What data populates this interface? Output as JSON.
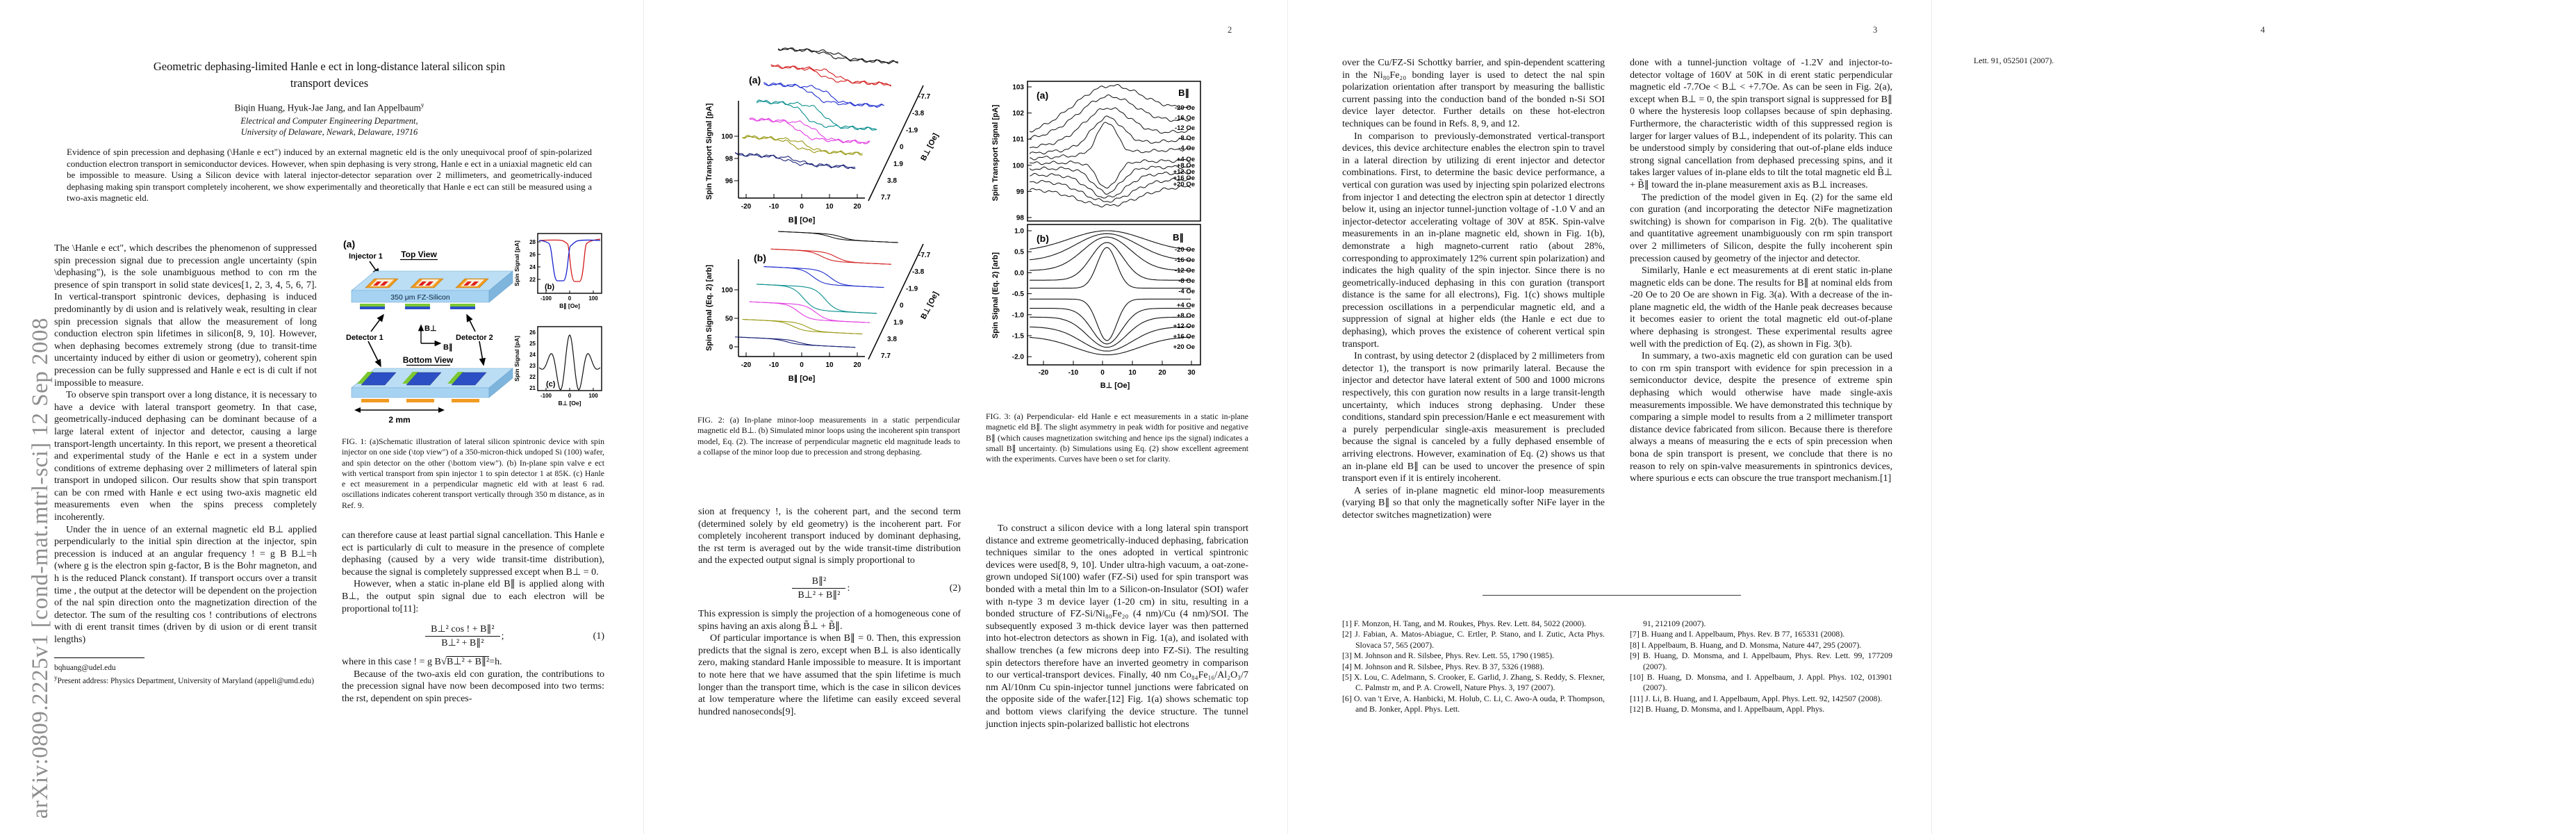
{
  "banner": "arXiv:0809.2225v1  [cond-mat.mtrl-sci]  12 Sep 2008",
  "page_numbers": {
    "p2": "2",
    "p3": "3",
    "p4": "4"
  },
  "head": {
    "title1": "Geometric dephasing-limited Hanle e ect in long-distance lateral silicon spin",
    "title2": "transport devices",
    "authors": "Biqin Huang,  Hyuk-Jae Jang, and Ian Appelbaum",
    "authors_sup": "y",
    "affil1": "Electrical and Computer Engineering Department,",
    "affil2": "University of Delaware, Newark, Delaware, 19716",
    "abstract": "Evidence of spin precession and dephasing (\\Hanle e ect\") induced by an external magnetic eld is the only unequivocal proof of spin-polarized conduction electron transport in semiconductor devices. However, when spin dephasing is very strong, Hanle e ect in a uniaxial magnetic eld can be impossible to measure. Using a Silicon device with lateral injector-detector separation over 2 millimeters, and geometrically-induced dephasing making spin transport completely incoherent, we show experimentally and theoretically that Hanle e ect can still be measured using a two-axis magnetic eld."
  },
  "p1": {
    "c1p1": "The \\Hanle e ect\", which describes the phenomenon of suppressed spin precession signal due to precession angle uncertainty (spin \\dephasing\"), is the sole unambiguous method to con rm the presence of spin transport in solid state devices[1, 2, 3, 4, 5, 6, 7]. In vertical-transport spintronic devices, dephasing is induced predominantly by di usion and is relatively weak, resulting in clear spin precession signals that allow the measurement of long conduction electron spin lifetimes in silicon[8, 9, 10]. However, when dephasing becomes extremely strong (due to transit-time uncertainty induced by either di usion or geometry), coherent spin precession can be fully suppressed and Hanle e ect is di cult if not impossible to measure.",
    "c1p2": "To observe spin transport over a long distance, it is necessary to have a device with lateral transport geometry. In that case, geometrically-induced dephasing can be dominant because of a large lateral extent of injector and detector, causing a large transport-length uncertainty. In this report, we present a theoretical and experimental study of the Hanle e ect in a system under conditions of extreme dephasing over 2 millimeters of lateral spin transport in undoped silicon. Our results show that spin transport can be con rmed with Hanle e ect using two-axis magnetic eld measurements even when the spins precess completely incoherently.",
    "c1p3": "Under the in uence of an external magnetic eld B⊥ applied perpendicularly to the initial spin direction at the injector, spin precession is induced at an angular frequency ! = g B B⊥=h (where g is the electron spin g-factor, B is the Bohr magneton, and h is the reduced Planck constant). If transport occurs over a transit time , the output at the detector will be dependent on the projection of the nal spin direction onto the magnetization direction of the detector. The sum of the resulting cos ! contributions of electrons with di erent transit times (driven by di usion or di erent transit lengths)",
    "fn1": "bqhuang@udel.edu",
    "fn2_sup": "y",
    "fn2": "Present address: Physics Department, University of Maryland (appeli@umd.edu)",
    "c2p1": "can therefore cause at least partial signal cancellation. This Hanle e ect is particularly di cult to measure in the presence of complete dephasing (caused by a very wide transit-time distribution), because the signal is completely suppressed except when B⊥ = 0.",
    "c2p2": "However, when a static in-plane eld B∥ is applied along with B⊥, the output spin signal due to each electron will be proportional to[11]:",
    "eq1": {
      "num": "B⊥² cos !  + B∥²",
      "den": "B⊥² + B∥²",
      "tail": ";",
      "no": "(1)"
    },
    "w_pre": "where in this case ! = g B",
    "w_rad": "B⊥² + B∥²",
    "w_post": "=h.",
    "c2p4": "Because of the two-axis eld con guration, the contributions to the precession signal have now been decomposed into two terms: the rst, dependent on spin preces-"
  },
  "fig1": {
    "caption": "FIG. 1:  (a)Schematic illustration of lateral silicon spintronic device with spin injector on one side (\\top view\") of a 350-micron-thick undoped Si (100) wafer, and spin detector on the other (\\bottom view\"). (b) In-plane spin valve e ect with vertical transport from spin injector 1 to spin detector 1 at 85K. (c) Hanle e ect measurement in a perpendicular magnetic eld with at least 6  rad. oscillations indicates coherent transport vertically through 350  m distance, as in Ref. 9.",
    "panel_a": "(a)",
    "panel_b": "(b)",
    "panel_c": "(c)",
    "injector1": "Injector 1",
    "top_view": "Top View",
    "fz": "350 μm FZ-Silicon",
    "detector1": "Detector 1",
    "detector2": "Detector 2",
    "bottom_view": "Bottom View",
    "scale": "2 mm",
    "bperp": "B⊥",
    "bpar": "B∥",
    "b_ylabel": "Spin Signal [pA]",
    "b_yticks": [
      "28",
      "26",
      "24",
      "22"
    ],
    "b_xticks": [
      "-100",
      "0",
      "100"
    ],
    "b_xlabel": "B∥ [Oe]",
    "c_ylabel": "Spin Signal [pA]",
    "c_yticks": [
      "26",
      "25",
      "24",
      "23",
      "22",
      "21"
    ],
    "c_xticks": [
      "-100",
      "0",
      "100"
    ],
    "c_xlabel": "B⊥ [Oe]"
  },
  "fig2": {
    "caption": "FIG. 2:  (a) In-plane minor-loop measurements in a static perpendicular magnetic eld B⊥. (b) Simulated minor loops using the incoherent spin transport model, Eq. (2). The increase of perpendicular magnetic eld magnitude leads to a collapse of the minor loop due to precession and strong dephasing.",
    "a_label": "(a)",
    "b_label": "(b)",
    "a_ylabel": "Spin Transport Signal [pA]",
    "b_ylabel": "Spin Signal (Eq. 2) [arb]",
    "a_yticks": [
      "100",
      "98",
      "96"
    ],
    "b_yticks": [
      "100",
      "50",
      "0"
    ],
    "xticks": [
      "-20",
      "-10",
      "0",
      "10",
      "20"
    ],
    "xlabel": "B∥ [Oe]",
    "depth_ticks": [
      "-7.7",
      "-3.8",
      "-1.9",
      "0",
      "1.9",
      "3.8",
      "7.7"
    ],
    "depth_label": "B⊥ [Oe]",
    "colors": [
      "#111111",
      "#d42020",
      "#2030cc",
      "#0c8f8f",
      "#e33fe3",
      "#9a9a16",
      "#1b2377"
    ],
    "a_amp": [
      10,
      16,
      22,
      30,
      24,
      15,
      9
    ],
    "b_amp": [
      8,
      14,
      22,
      34,
      22,
      13,
      7
    ]
  },
  "fig3": {
    "caption": "FIG. 3:  (a) Perpendicular- eld Hanle e ect measurements in a static in-plane magnetic eld B∥. The slight asymmetry in peak width for positive and negative B∥ (which causes magnetization switching and hence  ips the signal) indicates a small B∥ uncertainty. (b) Simulations using Eq. (2) show excellent agreement with the experiments. Curves have been o set for clarity.",
    "a_label": "(a)",
    "b_label": "(b)",
    "a_ylabel": "Spin Transport Signal [pA]",
    "b_ylabel": "Spin Signal (Eq. 2) [arb]",
    "a_yticks": [
      "103",
      "102",
      "101",
      "100",
      "99",
      "98"
    ],
    "b_yticks": [
      "1.0",
      "0.5",
      "0.0",
      "-0.5",
      "-1.0",
      "-1.5",
      "-2.0"
    ],
    "xticks": [
      "-20",
      "-10",
      "0",
      "10",
      "20",
      "30"
    ],
    "xlabel": "B⊥ [Oe]",
    "legend_title": "B∥",
    "legend": [
      "-20 Oe",
      "-16 Oe",
      "-12 Oe",
      "-8 Oe",
      "-4 Oe",
      "+4 Oe",
      "+8 Oe",
      "+12 Oe",
      "+16 Oe",
      "+20 Oe"
    ],
    "a_curves": [
      {
        "l": 113,
        "r": 77,
        "A": 52,
        "w": 0.3
      },
      {
        "l": 120,
        "r": 93,
        "A": 48,
        "w": 0.25
      },
      {
        "l": 132,
        "r": 108,
        "A": 45,
        "w": 0.2
      },
      {
        "l": 141,
        "r": 120,
        "A": 42,
        "w": 0.135
      },
      {
        "l": 148,
        "r": 134,
        "A": 46,
        "w": 0.085
      },
      {
        "l": 155,
        "r": 151,
        "A": -38,
        "w": 0.085
      },
      {
        "l": 163,
        "r": 160,
        "A": -36,
        "w": 0.12
      },
      {
        "l": 172,
        "r": 169,
        "A": -34,
        "w": 0.16
      },
      {
        "l": 181,
        "r": 178,
        "A": -30,
        "w": 0.21
      },
      {
        "l": 192,
        "r": 188,
        "A": -26,
        "w": 0.26
      }
    ],
    "b_curves": [
      {
        "p": 1.0,
        "t": 0.5,
        "w": 0.33
      },
      {
        "p": 0.93,
        "t": 0.28,
        "w": 0.27
      },
      {
        "p": 0.85,
        "t": 0.05,
        "w": 0.21
      },
      {
        "p": 0.72,
        "t": -0.18,
        "w": 0.14
      },
      {
        "p": 0.6,
        "t": -0.37,
        "w": 0.085
      },
      {
        "p": -1.62,
        "t": -0.63,
        "w": 0.085
      },
      {
        "p": -1.7,
        "t": -0.85,
        "w": 0.13
      },
      {
        "p": -1.78,
        "t": -1.06,
        "w": 0.17
      },
      {
        "p": -1.87,
        "t": -1.29,
        "w": 0.22
      },
      {
        "p": -1.96,
        "t": -1.52,
        "w": 0.28
      }
    ]
  },
  "p2": {
    "c1p1": "sion at frequency !, is the coherent part, and the second term (determined solely by  eld geometry) is the incoherent part. For completely incoherent transport induced by dominant dephasing, the  rst term is averaged out by the wide transit-time distribution and the expected output signal is simply proportional to",
    "eq2": {
      "num": "B∥²",
      "den": "B⊥² + B∥²",
      "tail": ":",
      "no": "(2)"
    },
    "c1p2": "This expression is simply the projection of a homogeneous cone of spins having an axis along B̃⊥ + B̃∥.",
    "c1p3": "Of particular importance is when B∥ = 0. Then, this expression predicts that the signal is zero, except when B⊥ is also identically zero, making standard Hanle impossible to measure. It is important to note here that we have assumed that the spin lifetime is much longer than the transport time, which is the case in silicon devices at low temperature where the lifetime can easily exceed several hundred nanoseconds[9].",
    "c2p1": "To construct a silicon device with a long lateral spin transport distance and extreme geometrically-induced dephasing, fabrication techniques similar to the ones adopted in vertical spintronic devices were used[8, 9, 10]. Under ultra-high vacuum, a  oat-zone-grown undoped Si(100) wafer (FZ-Si) used for spin transport was bonded with a metal thin  lm to a Silicon-on-Insulator (SOI) wafer with n-type 3  m device layer (1-20   cm) in situ, resulting in a bonded structure of FZ-Si/Ni₈₀Fe₂₀ (4 nm)/Cu (4 nm)/SOI. The subsequently exposed 3  m-thick device layer was then patterned into hot-electron detectors as shown in Fig. 1(a), and isolated with shallow trenches (a few microns deep into FZ-Si). The resulting spin detectors therefore have an inverted geometry in comparison to our vertical-transport devices. Finally, 40 nm Co₈₄Fe₁₆/Al₂O₃/7 nm Al/10nm Cu spin-injector tunnel junctions were fabricated on the opposite side of the wafer.[12] Fig. 1(a) shows schematic top and bottom views clarifying the device structure. The tunnel junction injects spin-polarized ballistic hot electrons"
  },
  "p3": {
    "c1p1": "over the Cu/FZ-Si Schottky barrier, and spin-dependent scattering in the Ni₈₀Fe₂₀ bonding layer is used to detect the  nal spin polarization orientation after transport by measuring the ballistic current passing into the conduction band of the bonded n-Si SOI device layer detector. Further details on these hot-electron techniques can be found in Refs. 8, 9, and 12.",
    "c1p2": "In comparison to previously-demonstrated vertical-transport devices, this device architecture enables the electron spin to travel in a lateral direction by utilizing di erent injector and detector combinations. First, to determine the basic device performance, a vertical con guration was used by injecting spin polarized electrons from injector 1 and detecting the electron spin at detector 1 directly below it, using an injector tunnel-junction voltage of -1.0 V and an injector-detector accelerating voltage of 30V at 85K. Spin-valve measurements in an in-plane magnetic  eld, shown in Fig. 1(b), demonstrate a high magneto-current ratio (about 28%, corresponding to approximately 12% current spin polarization) and indicates the high quality of the spin injector. Since there is no geometrically-induced dephasing in this con guration (transport distance is the same for all electrons), Fig. 1(c) shows multiple precession oscillations in a perpendicular magnetic  eld, and a suppression of signal at higher  elds (the Hanle e ect due to dephasing), which proves the existence of coherent vertical spin transport.",
    "c1p3": "In contrast, by using detector 2 (displaced by 2 millimeters from detector 1), the transport is now primarily lateral. Because the injector and detector have lateral extent of 500 and 1000 microns respectively, this con guration now results in a large transit-length uncertainty, which induces strong dephasing. Under these conditions, standard spin precession/Hanle e ect measurement with a purely perpendicular single-axis measurement is precluded because the signal is canceled by a fully dephased ensemble of arriving electrons. However, examination of Eq. (2) shows us that an in-plane  eld B∥ can be used to uncover the presence of spin transport even if it is entirely incoherent.",
    "c1p4": "A series of in-plane magnetic  eld minor-loop measurements (varying B∥ so that only the magnetically softer NiFe layer in the detector switches magnetization) were",
    "c2p1": "done with a tunnel-junction voltage of -1.2V and injector-to-detector voltage of 160V at 50K in di erent static perpendicular magnetic  eld -7.7Oe < B⊥ < +7.7Oe. As can be seen in Fig. 2(a), except when B⊥ = 0, the spin transport signal is suppressed for B∥  0 where the hysteresis loop collapses because of spin dephasing. Furthermore, the characteristic width of this suppressed region is larger for larger values of B⊥, independent of its polarity. This can be understood simply by considering that out-of-plane  elds induce strong signal cancellation from dephased precessing spins, and it takes larger values of in-plane  elds to tilt the total magnetic  eld B̃⊥ + B̃∥ toward the in-plane measurement axis as B⊥ increases.",
    "c2p2": "The prediction of the model given in Eq. (2) for the same  eld con guration (and incorporating the detector NiFe magnetization switching) is shown for comparison in Fig. 2(b). The qualitative and quantitative agreement unambiguously con rm spin transport over 2 millimeters of Silicon, despite the fully incoherent spin precession caused by geometry of the injector and detector.",
    "c2p3": "Similarly, Hanle e ect measurements at di erent static in-plane magnetic  elds can be done. The results for B∥ at nominal  elds from  -20 Oe to 20 Oe are shown in Fig. 3(a). With a decrease of the in-plane magnetic  eld, the width of the Hanle peak decreases because it becomes easier to orient the total magnetic  eld out-of-plane where dephasing is strongest. These experimental results agree well with the prediction of Eq. (2), as shown in Fig. 3(b).",
    "c2p4": "In summary, a two-axis magnetic  eld con guration can be used to con rm spin transport with evidence for spin precession in a semiconductor device, despite the presence of extreme spin dephasing which would otherwise have made single-axis measurements impossible. We have demonstrated this technique by comparing a simple model to results from a 2 millimeter transport distance device fabricated from silicon. Because there is therefore always a means of measuring the e ects of spin precession when bona  de spin transport is present, we conclude that there is no reason to rely on spin-valve measurements in spintronics devices, where spurious e ects can obscure the true transport mechanism.[1]"
  },
  "refs": {
    "items1": [
      "[1] F. Monzon, H. Tang, and M. Roukes, Phys. Rev. Lett. 84, 5022 (2000).",
      "[2] J. Fabian, A. Matos-Abiague, C. Ertler, P. Stano, and I. Zutic, Acta Phys. Slovaca 57, 565 (2007).",
      "[3] M. Johnson and R. Silsbee, Phys. Rev. Lett. 55, 1790 (1985).",
      "[4] M. Johnson and R. Silsbee, Phys. Rev. B 37, 5326 (1988).",
      "[5] X. Lou, C. Adelmann, S. Crooker, E. Garlid, J. Zhang, S. Reddy, S. Flexner, C. Palmstr m, and P. A. Crowell, Nature Phys. 3, 197 (2007).",
      "[6] O. van 't Erve, A. Hanbicki, M. Holub, C. Li, C. Awo-A ouda, P. Thompson, and B. Jonker, Appl. Phys. Lett."
    ],
    "cont": "91, 212109 (2007).",
    "items2": [
      "[7] B. Huang and I. Appelbaum, Phys. Rev. B 77, 165331 (2008).",
      "[8] I. Appelbaum, B. Huang, and D. Monsma, Nature 447, 295 (2007).",
      "[9] B. Huang, D. Monsma, and I. Appelbaum, Phys. Rev. Lett. 99, 177209 (2007).",
      "[10] B. Huang, D. Monsma, and I. Appelbaum, J. Appl. Phys. 102, 013901 (2007).",
      "[11] J. Li, B. Huang, and I. Appelbaum, Appl. Phys. Lett. 92, 142507 (2008).",
      "[12] B. Huang, D. Monsma, and I. Appelbaum, Appl. Phys."
    ]
  },
  "p4": {
    "cont": "Lett. 91, 052501 (2007)."
  }
}
